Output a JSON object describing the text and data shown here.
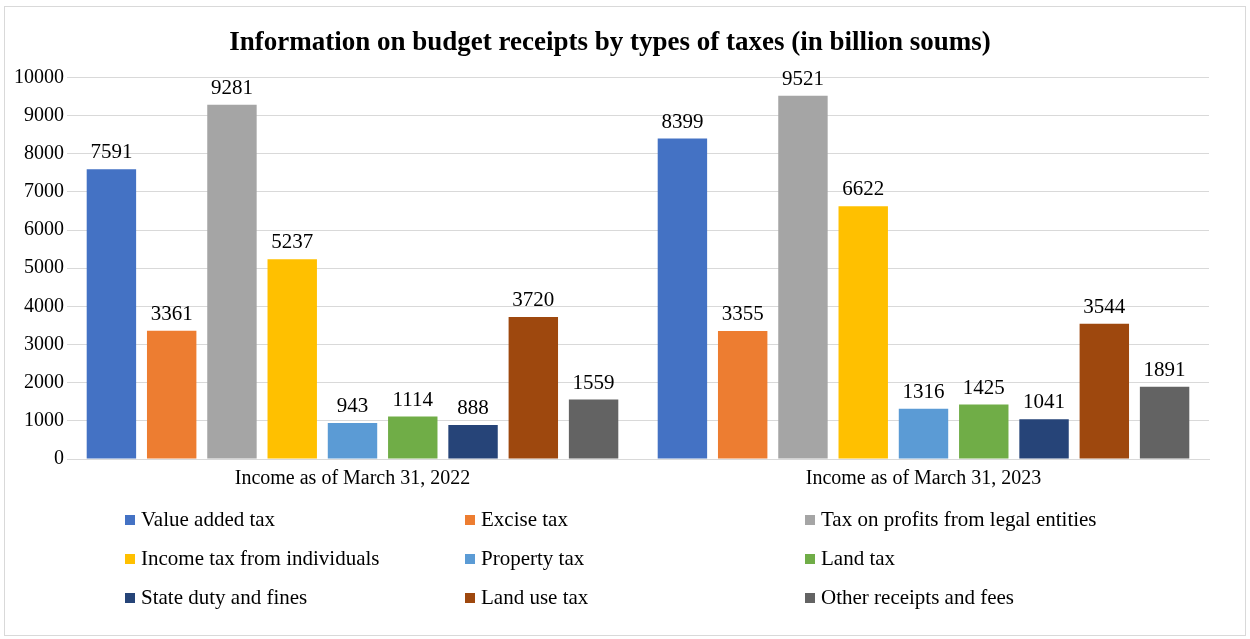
{
  "chart_data": {
    "type": "bar",
    "title": "Information on budget receipts by types of taxes (in billion soums)",
    "categories": [
      "Income as of March 31, 2022",
      "Income as of March 31, 2023"
    ],
    "series": [
      {
        "name": "Value added tax",
        "color": "#4472c4",
        "values": [
          7591,
          8399
        ]
      },
      {
        "name": "Excise tax",
        "color": "#ed7d31",
        "values": [
          3361,
          3355
        ]
      },
      {
        "name": "Tax on profits from legal entities",
        "color": "#a5a5a5",
        "values": [
          9281,
          9521
        ]
      },
      {
        "name": "Income tax from individuals",
        "color": "#ffc000",
        "values": [
          5237,
          6622
        ]
      },
      {
        "name": "Property tax",
        "color": "#5b9bd5",
        "values": [
          943,
          1316
        ]
      },
      {
        "name": "Land tax",
        "color": "#70ad47",
        "values": [
          1114,
          1425
        ]
      },
      {
        "name": "State duty and fines",
        "color": "#264478",
        "values": [
          888,
          1041
        ]
      },
      {
        "name": "Land use tax",
        "color": "#9e480e",
        "values": [
          3720,
          3544
        ]
      },
      {
        "name": "Other receipts and fees",
        "color": "#636363",
        "values": [
          1559,
          1891
        ]
      }
    ],
    "ylim": [
      0,
      10000
    ],
    "yticks": [
      0,
      1000,
      2000,
      3000,
      4000,
      5000,
      6000,
      7000,
      8000,
      9000,
      10000
    ],
    "grid": "y",
    "legend": "bottom",
    "data_labels": true
  }
}
